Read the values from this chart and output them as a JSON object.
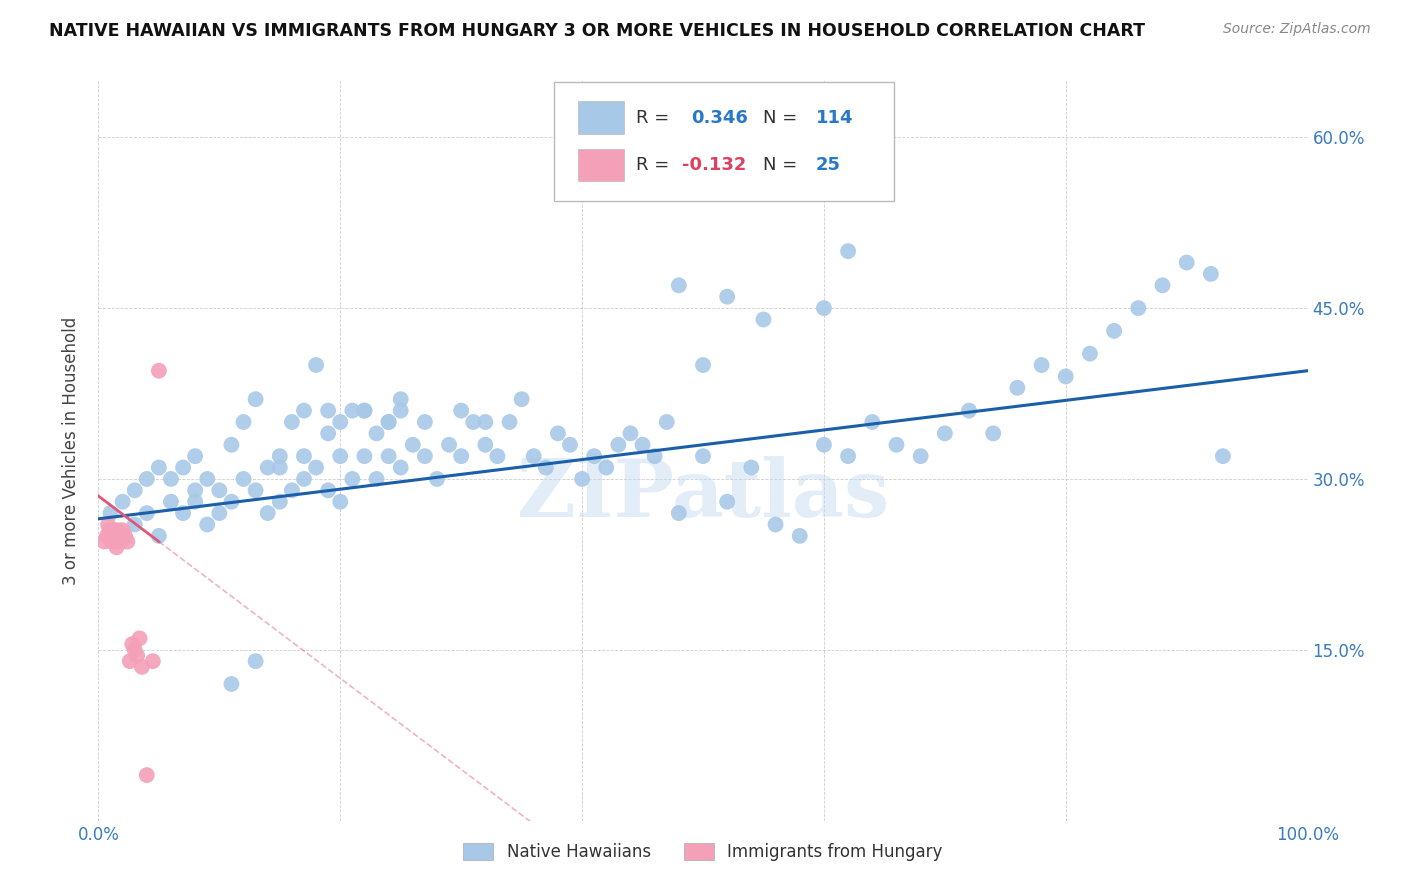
{
  "title": "NATIVE HAWAIIAN VS IMMIGRANTS FROM HUNGARY 3 OR MORE VEHICLES IN HOUSEHOLD CORRELATION CHART",
  "source": "Source: ZipAtlas.com",
  "ylabel": "3 or more Vehicles in Household",
  "yticks": [
    "15.0%",
    "30.0%",
    "45.0%",
    "60.0%"
  ],
  "ytick_vals": [
    0.15,
    0.3,
    0.45,
    0.6
  ],
  "xlim": [
    0.0,
    1.0
  ],
  "ylim": [
    0.0,
    0.65
  ],
  "r_blue": 0.346,
  "n_blue": 114,
  "r_pink": -0.132,
  "n_pink": 25,
  "blue_color": "#a8c8e8",
  "pink_color": "#f4a0b8",
  "blue_line_color": "#1a5fa8",
  "pink_line_color": "#e05878",
  "watermark": "ZIPatlas",
  "legend_label_blue": "Native Hawaiians",
  "legend_label_pink": "Immigrants from Hungary",
  "blue_x": [
    0.01,
    0.02,
    0.02,
    0.03,
    0.03,
    0.04,
    0.04,
    0.05,
    0.05,
    0.06,
    0.06,
    0.07,
    0.07,
    0.08,
    0.08,
    0.08,
    0.09,
    0.09,
    0.1,
    0.1,
    0.11,
    0.11,
    0.12,
    0.12,
    0.13,
    0.13,
    0.14,
    0.14,
    0.15,
    0.15,
    0.16,
    0.16,
    0.17,
    0.17,
    0.18,
    0.18,
    0.19,
    0.19,
    0.2,
    0.2,
    0.21,
    0.21,
    0.22,
    0.22,
    0.23,
    0.23,
    0.24,
    0.24,
    0.25,
    0.25,
    0.26,
    0.27,
    0.28,
    0.29,
    0.3,
    0.31,
    0.32,
    0.33,
    0.34,
    0.35,
    0.36,
    0.37,
    0.38,
    0.39,
    0.4,
    0.41,
    0.42,
    0.43,
    0.44,
    0.45,
    0.46,
    0.47,
    0.48,
    0.5,
    0.52,
    0.54,
    0.56,
    0.58,
    0.6,
    0.62,
    0.64,
    0.66,
    0.68,
    0.7,
    0.72,
    0.74,
    0.76,
    0.78,
    0.8,
    0.82,
    0.84,
    0.86,
    0.88,
    0.9,
    0.92,
    0.93,
    0.6,
    0.62,
    0.5,
    0.55,
    0.48,
    0.52,
    0.3,
    0.32,
    0.25,
    0.27,
    0.22,
    0.24,
    0.19,
    0.2,
    0.17,
    0.15,
    0.13,
    0.11
  ],
  "blue_y": [
    0.27,
    0.28,
    0.25,
    0.29,
    0.26,
    0.3,
    0.27,
    0.31,
    0.25,
    0.3,
    0.28,
    0.31,
    0.27,
    0.29,
    0.32,
    0.28,
    0.3,
    0.26,
    0.29,
    0.27,
    0.33,
    0.28,
    0.35,
    0.3,
    0.37,
    0.29,
    0.27,
    0.31,
    0.32,
    0.28,
    0.35,
    0.29,
    0.36,
    0.3,
    0.4,
    0.31,
    0.34,
    0.29,
    0.32,
    0.28,
    0.36,
    0.3,
    0.36,
    0.32,
    0.34,
    0.3,
    0.32,
    0.35,
    0.37,
    0.31,
    0.33,
    0.32,
    0.3,
    0.33,
    0.32,
    0.35,
    0.33,
    0.32,
    0.35,
    0.37,
    0.32,
    0.31,
    0.34,
    0.33,
    0.3,
    0.32,
    0.31,
    0.33,
    0.34,
    0.33,
    0.32,
    0.35,
    0.27,
    0.32,
    0.28,
    0.31,
    0.26,
    0.25,
    0.33,
    0.32,
    0.35,
    0.33,
    0.32,
    0.34,
    0.36,
    0.34,
    0.38,
    0.4,
    0.39,
    0.41,
    0.43,
    0.45,
    0.47,
    0.49,
    0.48,
    0.32,
    0.45,
    0.5,
    0.4,
    0.44,
    0.47,
    0.46,
    0.36,
    0.35,
    0.36,
    0.35,
    0.36,
    0.35,
    0.36,
    0.35,
    0.32,
    0.31,
    0.14,
    0.12
  ],
  "pink_x": [
    0.005,
    0.007,
    0.008,
    0.009,
    0.01,
    0.011,
    0.012,
    0.013,
    0.014,
    0.015,
    0.016,
    0.017,
    0.018,
    0.02,
    0.022,
    0.024,
    0.026,
    0.028,
    0.03,
    0.032,
    0.034,
    0.036,
    0.04,
    0.045,
    0.05
  ],
  "pink_y": [
    0.245,
    0.25,
    0.26,
    0.255,
    0.25,
    0.245,
    0.255,
    0.25,
    0.245,
    0.24,
    0.255,
    0.25,
    0.245,
    0.255,
    0.25,
    0.245,
    0.14,
    0.155,
    0.15,
    0.145,
    0.16,
    0.135,
    0.04,
    0.14,
    0.395
  ]
}
